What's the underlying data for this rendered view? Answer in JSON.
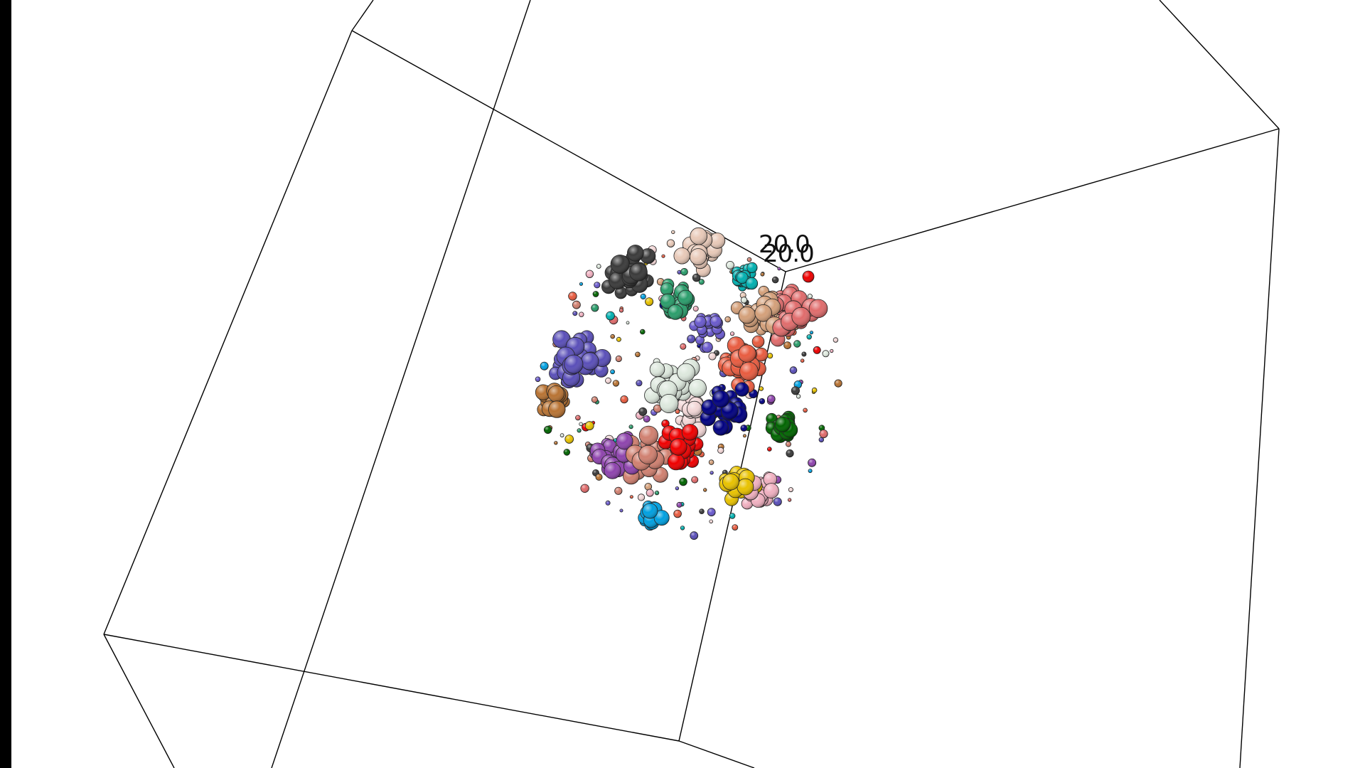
{
  "viewer": {
    "background_color": "#ffffff",
    "frame_color": "#000000",
    "box_line_color": "#000000",
    "axis_labels": [
      "20.0",
      "20.0"
    ]
  },
  "structure": {
    "description_type": "3D molecular structure in bounding box",
    "chain_colors": [
      "#3a3a3a",
      "#5a4fb8",
      "#b87333",
      "#8e44ad",
      "#e8c9b8",
      "#2a9d6b",
      "#f2d6d6",
      "#e06c6c",
      "#d4a07a",
      "#e85c40",
      "#dde8dd",
      "#000080",
      "#ee0000",
      "#006400",
      "#e8c200",
      "#00a0e0",
      "#f0b0c0",
      "#00b0b0",
      "#d08070",
      "#6a5acd"
    ]
  }
}
